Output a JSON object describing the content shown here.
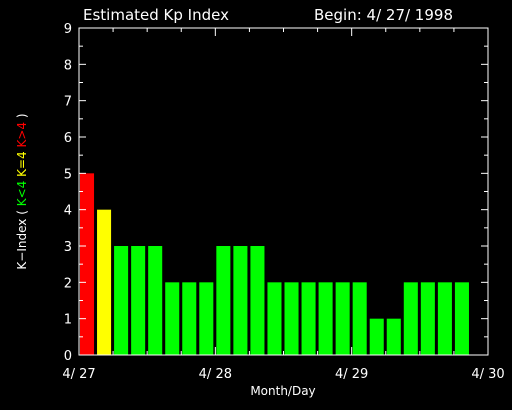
{
  "chart_data": {
    "type": "bar",
    "title": "Estimated Kp Index",
    "subtitle": "Begin: 4/ 27/ 1998",
    "xlabel": "Month/Day",
    "ylabel": {
      "prefix": "K−Index ( ",
      "parts": [
        {
          "text": "K<4",
          "color": "#00ff00"
        },
        {
          "text": " ",
          "color": "#ffffff"
        },
        {
          "text": "K=4",
          "color": "#ffff00"
        },
        {
          "text": " ",
          "color": "#ffffff"
        },
        {
          "text": "K>4",
          "color": "#ff0000"
        }
      ],
      "suffix": " )"
    },
    "ylim": [
      0,
      9
    ],
    "yticks": [
      "0",
      "1",
      "2",
      "3",
      "4",
      "5",
      "6",
      "7",
      "8",
      "9"
    ],
    "xlim_days": [
      0,
      3
    ],
    "xticks": [
      {
        "day": 0,
        "label": "4/ 27"
      },
      {
        "day": 1,
        "label": "4/ 28"
      },
      {
        "day": 2,
        "label": "4/ 29"
      },
      {
        "day": 3,
        "label": "4/ 30"
      }
    ],
    "bar_interval_hours": 3,
    "values": [
      5,
      4,
      3,
      3,
      3,
      2,
      2,
      2,
      3,
      3,
      3,
      2,
      2,
      2,
      2,
      2,
      2,
      1,
      1,
      2,
      2,
      2,
      2
    ],
    "colors": {
      "low": "#00ff00",
      "storm_threshold": "#ffff00",
      "high": "#ff0000",
      "axes": "#ffffff",
      "background": "#000000"
    },
    "grid": false
  }
}
